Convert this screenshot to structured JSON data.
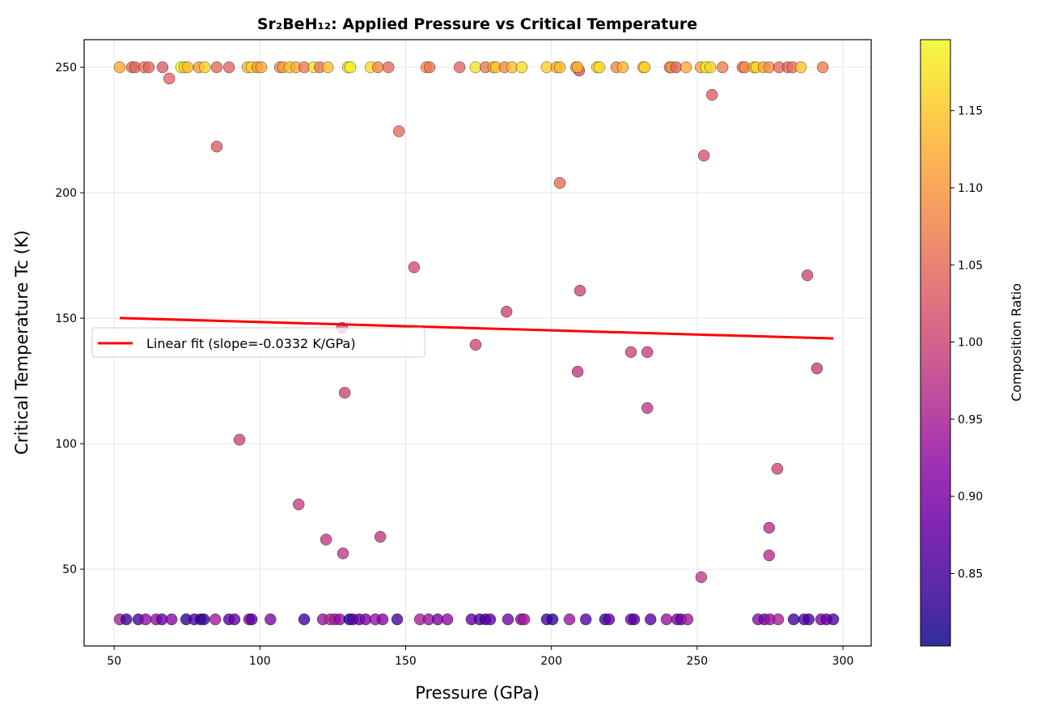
{
  "chart_data": {
    "type": "scatter",
    "title": "Sr₂BeH₁₂: Applied Pressure vs Critical Temperature",
    "xlabel": "Pressure (GPa)",
    "ylabel": "Critical Temperature Tc (K)",
    "xlim": [
      39.7,
      309.7
    ],
    "ylim": [
      19.4,
      261
    ],
    "xticks": [
      50,
      100,
      150,
      200,
      250,
      300
    ],
    "yticks": [
      50,
      100,
      150,
      200,
      250
    ],
    "grid": true,
    "colormap": "plasma",
    "colorbar": {
      "label": "Composition Ratio",
      "range": [
        0.803,
        1.196
      ],
      "ticks": [
        "0.85",
        "0.90",
        "0.95",
        "1.00",
        "1.05",
        "1.10",
        "1.15"
      ]
    },
    "legend": {
      "placement": "center-left",
      "entries": [
        "Linear fit (slope=-0.0332 K/GPa)"
      ]
    },
    "fit": {
      "slope": -0.0332,
      "intercept": 151.8,
      "x_range": [
        51.9,
        296.7
      ],
      "color": "#ff0000"
    },
    "points": [
      [
        68.9,
        245.5,
        1.04
      ],
      [
        85.2,
        218.4,
        1.03
      ],
      [
        93.0,
        101.6,
        1.0
      ],
      [
        113.3,
        75.8,
        0.99
      ],
      [
        122.7,
        61.8,
        0.98
      ],
      [
        128.5,
        56.3,
        0.98
      ],
      [
        128.2,
        146.1,
        1.0
      ],
      [
        129.1,
        120.3,
        1.0
      ],
      [
        141.3,
        62.9,
        0.98
      ],
      [
        147.7,
        224.5,
        1.05
      ],
      [
        152.9,
        170.3,
        1.01
      ],
      [
        174.0,
        139.4,
        1.0
      ],
      [
        184.6,
        152.6,
        1.0
      ],
      [
        202.9,
        203.9,
        1.05
      ],
      [
        209.8,
        161.0,
        1.0
      ],
      [
        209.5,
        248.7,
        1.02
      ],
      [
        209.0,
        128.7,
        0.98
      ],
      [
        227.3,
        136.5,
        1.0
      ],
      [
        232.9,
        136.5,
        0.99
      ],
      [
        232.9,
        114.2,
        0.98
      ],
      [
        252.3,
        214.8,
        1.02
      ],
      [
        255.1,
        239.0,
        1.03
      ],
      [
        251.4,
        46.8,
        0.98
      ],
      [
        274.7,
        66.5,
        0.97
      ],
      [
        274.7,
        55.5,
        0.97
      ],
      [
        277.5,
        90.0,
        1.0
      ],
      [
        287.8,
        167.1,
        1.0
      ],
      [
        291.1,
        130.0,
        0.99
      ],
      [
        51.9,
        250,
        1.12
      ],
      [
        56.1,
        250,
        1.05
      ],
      [
        57.2,
        250,
        1.04
      ],
      [
        60.3,
        250,
        1.06
      ],
      [
        61.9,
        250,
        1.04
      ],
      [
        66.6,
        250,
        1.03
      ],
      [
        73.0,
        250,
        1.19
      ],
      [
        74.1,
        250,
        1.17
      ],
      [
        75.2,
        250,
        1.14
      ],
      [
        79.1,
        250,
        1.1
      ],
      [
        81.1,
        250,
        1.16
      ],
      [
        85.2,
        250,
        1.05
      ],
      [
        89.4,
        250,
        1.04
      ],
      [
        95.8,
        250,
        1.13
      ],
      [
        97.2,
        250,
        1.17
      ],
      [
        99.1,
        250,
        1.1
      ],
      [
        100.5,
        250,
        1.12
      ],
      [
        106.9,
        250,
        1.08
      ],
      [
        108.0,
        250,
        1.11
      ],
      [
        110.2,
        250,
        1.15
      ],
      [
        112.4,
        250,
        1.12
      ],
      [
        115.2,
        250,
        1.07
      ],
      [
        118.5,
        250,
        1.18
      ],
      [
        120.5,
        250,
        1.06
      ],
      [
        123.3,
        250,
        1.14
      ],
      [
        130.2,
        250,
        1.16
      ],
      [
        131.0,
        250,
        1.19
      ],
      [
        138.0,
        250,
        1.17
      ],
      [
        140.5,
        250,
        1.08
      ],
      [
        144.1,
        250,
        1.05
      ],
      [
        157.1,
        250,
        1.1
      ],
      [
        158.2,
        250,
        1.06
      ],
      [
        168.5,
        250,
        1.04
      ],
      [
        174.0,
        250,
        1.18
      ],
      [
        177.4,
        250,
        1.06
      ],
      [
        180.1,
        250,
        1.12
      ],
      [
        181.0,
        250,
        1.15
      ],
      [
        184.0,
        250,
        1.09
      ],
      [
        186.5,
        250,
        1.14
      ],
      [
        189.8,
        250,
        1.17
      ],
      [
        198.4,
        250,
        1.16
      ],
      [
        201.8,
        250,
        1.12
      ],
      [
        202.9,
        250,
        1.14
      ],
      [
        208.5,
        250,
        1.1
      ],
      [
        209.0,
        250,
        1.13
      ],
      [
        215.7,
        250,
        1.15
      ],
      [
        216.5,
        250,
        1.17
      ],
      [
        222.3,
        250,
        1.08
      ],
      [
        224.5,
        250,
        1.13
      ],
      [
        231.5,
        250,
        1.14
      ],
      [
        232.0,
        250,
        1.16
      ],
      [
        240.6,
        250,
        1.07
      ],
      [
        241.2,
        250,
        1.1
      ],
      [
        242.8,
        250,
        1.04
      ],
      [
        246.2,
        250,
        1.12
      ],
      [
        251.2,
        250,
        1.11
      ],
      [
        253.1,
        250,
        1.19
      ],
      [
        254.5,
        250,
        1.16
      ],
      [
        258.7,
        250,
        1.07
      ],
      [
        265.6,
        250,
        1.05
      ],
      [
        266.4,
        250,
        1.09
      ],
      [
        269.5,
        250,
        1.14
      ],
      [
        270.3,
        250,
        1.16
      ],
      [
        272.8,
        250,
        1.12
      ],
      [
        274.7,
        250,
        1.09
      ],
      [
        278.1,
        250,
        1.05
      ],
      [
        281.1,
        250,
        1.04
      ],
      [
        282.8,
        250,
        1.06
      ],
      [
        285.6,
        250,
        1.15
      ],
      [
        293.1,
        250,
        1.07
      ],
      [
        51.9,
        30,
        0.95
      ],
      [
        54.2,
        30,
        0.84
      ],
      [
        58.3,
        30,
        0.85
      ],
      [
        60.8,
        30,
        0.92
      ],
      [
        64.4,
        30,
        0.93
      ],
      [
        66.4,
        30,
        0.88
      ],
      [
        69.7,
        30,
        0.91
      ],
      [
        74.7,
        30,
        0.83
      ],
      [
        77.5,
        30,
        0.86
      ],
      [
        79.7,
        30,
        0.82
      ],
      [
        80.8,
        30,
        0.84
      ],
      [
        84.7,
        30,
        0.94
      ],
      [
        89.4,
        30,
        0.86
      ],
      [
        91.3,
        30,
        0.88
      ],
      [
        96.3,
        30,
        0.92
      ],
      [
        97.2,
        30,
        0.87
      ],
      [
        103.6,
        30,
        0.9
      ],
      [
        115.2,
        30,
        0.84
      ],
      [
        121.6,
        30,
        0.93
      ],
      [
        124.1,
        30,
        0.96
      ],
      [
        125.7,
        30,
        0.94
      ],
      [
        127.4,
        30,
        0.92
      ],
      [
        130.7,
        30,
        0.82
      ],
      [
        131.9,
        30,
        0.86
      ],
      [
        134.1,
        30,
        0.88
      ],
      [
        136.3,
        30,
        0.9
      ],
      [
        139.6,
        30,
        0.93
      ],
      [
        142.1,
        30,
        0.91
      ],
      [
        147.1,
        30,
        0.85
      ],
      [
        154.9,
        30,
        0.95
      ],
      [
        157.9,
        30,
        0.93
      ],
      [
        161.0,
        30,
        0.9
      ],
      [
        164.3,
        30,
        0.92
      ],
      [
        172.6,
        30,
        0.88
      ],
      [
        175.4,
        30,
        0.86
      ],
      [
        177.4,
        30,
        0.84
      ],
      [
        179.0,
        30,
        0.87
      ],
      [
        185.1,
        30,
        0.89
      ],
      [
        189.6,
        30,
        0.91
      ],
      [
        190.7,
        30,
        0.94
      ],
      [
        198.4,
        30,
        0.85
      ],
      [
        200.4,
        30,
        0.83
      ],
      [
        206.2,
        30,
        0.93
      ],
      [
        211.8,
        30,
        0.86
      ],
      [
        218.4,
        30,
        0.84
      ],
      [
        219.8,
        30,
        0.87
      ],
      [
        227.3,
        30,
        0.9
      ],
      [
        228.4,
        30,
        0.86
      ],
      [
        234.0,
        30,
        0.87
      ],
      [
        239.5,
        30,
        0.93
      ],
      [
        243.1,
        30,
        0.9
      ],
      [
        244.5,
        30,
        0.88
      ],
      [
        246.7,
        30,
        0.94
      ],
      [
        270.9,
        30,
        0.91
      ],
      [
        273.1,
        30,
        0.89
      ],
      [
        275.0,
        30,
        0.93
      ],
      [
        277.8,
        30,
        0.95
      ],
      [
        283.1,
        30,
        0.84
      ],
      [
        286.7,
        30,
        0.86
      ],
      [
        288.3,
        30,
        0.85
      ],
      [
        292.5,
        30,
        0.9
      ],
      [
        294.4,
        30,
        0.88
      ],
      [
        296.7,
        30,
        0.86
      ]
    ]
  }
}
